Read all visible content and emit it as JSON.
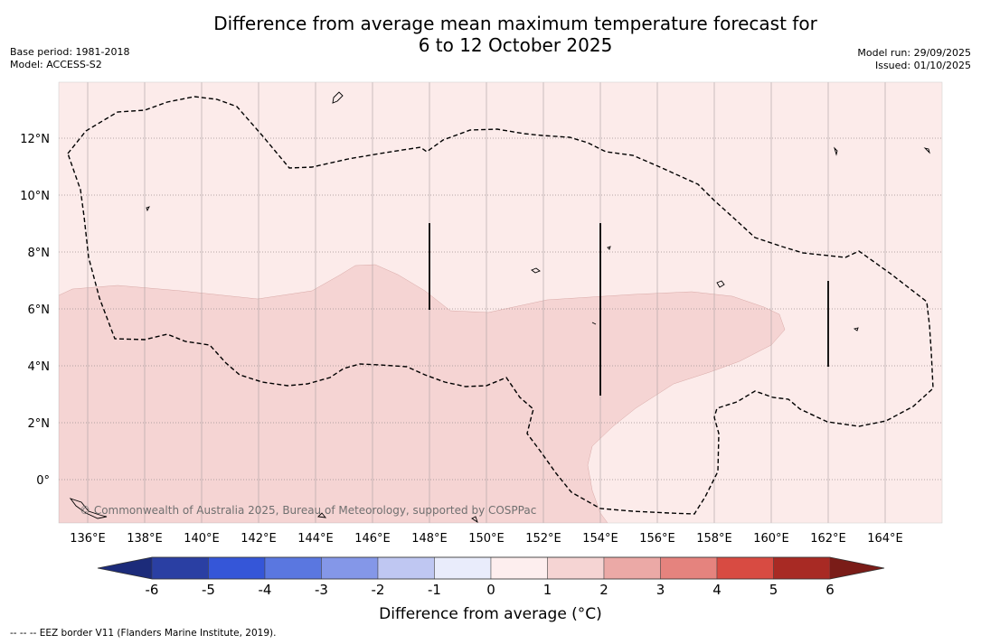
{
  "title": {
    "line1": "Difference from average mean maximum temperature forecast for",
    "line2": "6 to 12 October 2025"
  },
  "meta": {
    "base_period": "Base period: 1981-2018",
    "model": "Model: ACCESS-S2",
    "model_run": "Model run: 29/09/2025",
    "issued": "Issued: 01/10/2025"
  },
  "map": {
    "lon_labels": [
      "136°E",
      "138°E",
      "140°E",
      "142°E",
      "144°E",
      "146°E",
      "148°E",
      "150°E",
      "152°E",
      "154°E",
      "156°E",
      "158°E",
      "160°E",
      "162°E",
      "164°E"
    ],
    "lat_labels": [
      "12°N",
      "10°N",
      "8°N",
      "6°N",
      "4°N",
      "2°N",
      "0°"
    ],
    "copyright": "© Commonwealth of Australia 2025, Bureau of Meteorology, supported by COSPPac"
  },
  "colorbar": {
    "title": "Difference from average (°C)",
    "tick_labels": [
      "-6",
      "-5",
      "-4",
      "-3",
      "-2",
      "-1",
      "0",
      "1",
      "2",
      "3",
      "4",
      "5",
      "6"
    ],
    "colors": [
      "#2a3fa3",
      "#3556d8",
      "#5a77e0",
      "#8497e8",
      "#bfc7f2",
      "#e9ecfb",
      "#fdeeee",
      "#f5d4d3",
      "#eba9a6",
      "#e5837e",
      "#d84b42",
      "#a82a24"
    ],
    "under_color": "#1c2b7a",
    "over_color": "#7a1c18"
  },
  "footer": "--  --  -- EEZ border V11 (Flanders Marine Institute, 2019)."
}
